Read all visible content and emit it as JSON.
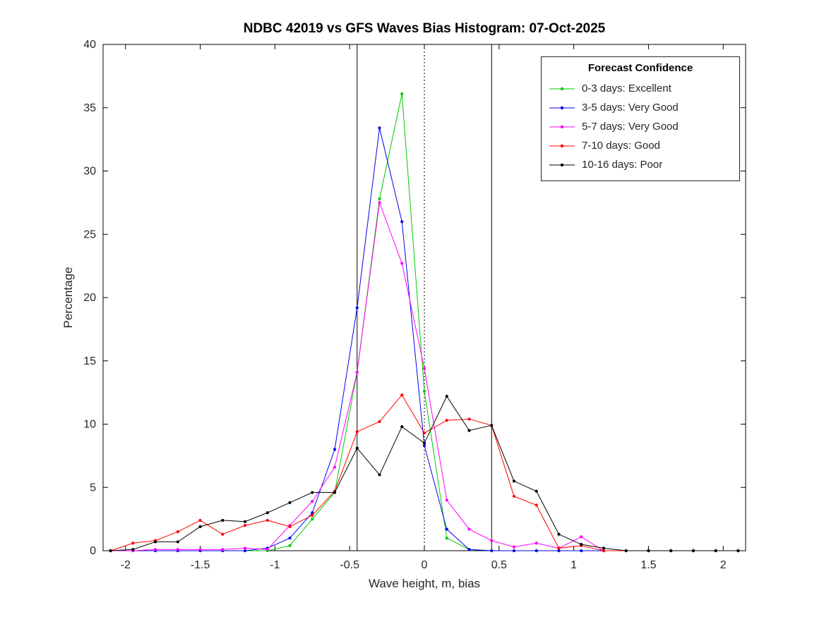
{
  "title": "NDBC 42019 vs GFS Waves Bias Histogram: 07-Oct-2025",
  "xlabel": "Wave height, m, bias",
  "ylabel": "Percentage",
  "legend": {
    "title": "Forecast Confidence"
  },
  "chart_data": {
    "type": "line",
    "title": "NDBC 42019 vs GFS Waves Bias Histogram: 07-Oct-2025",
    "xlabel": "Wave height, m, bias",
    "ylabel": "Percentage",
    "xlim": [
      -2.15,
      2.15
    ],
    "ylim": [
      0,
      40
    ],
    "xticks": [
      -2,
      -1.5,
      -1,
      -0.5,
      0,
      0.5,
      1,
      1.5,
      2
    ],
    "yticks": [
      0,
      5,
      10,
      15,
      20,
      25,
      30,
      35,
      40
    ],
    "grid": false,
    "legend_position": "top-right",
    "vlines": [
      {
        "x": -0.45,
        "style": "solid"
      },
      {
        "x": 0,
        "style": "dotted"
      },
      {
        "x": 0.45,
        "style": "solid"
      }
    ],
    "x": [
      -2.1,
      -1.95,
      -1.8,
      -1.65,
      -1.5,
      -1.35,
      -1.2,
      -1.05,
      -0.9,
      -0.75,
      -0.6,
      -0.45,
      -0.3,
      -0.15,
      0,
      0.15,
      0.3,
      0.45,
      0.6,
      0.75,
      0.9,
      1.05,
      1.2,
      1.35,
      1.5,
      1.65,
      1.8,
      1.95,
      2.1
    ],
    "series": [
      {
        "name": "0-3 days: Excellent",
        "color": "#00cc00",
        "values": [
          0,
          0,
          0,
          0,
          0,
          0,
          0,
          0,
          0.4,
          2.5,
          4.6,
          14.1,
          27.8,
          36.1,
          12.6,
          1.0,
          0.1,
          0,
          0,
          0,
          0,
          0,
          0,
          0,
          0,
          0,
          0,
          0,
          0
        ]
      },
      {
        "name": "3-5 days: Very Good",
        "color": "#0000ee",
        "values": [
          0,
          0,
          0,
          0,
          0,
          0,
          0,
          0.2,
          1.0,
          3.0,
          8.0,
          19.2,
          33.4,
          26.0,
          8.3,
          1.7,
          0.1,
          0,
          0,
          0,
          0,
          0,
          0,
          0,
          0,
          0,
          0,
          0,
          0
        ]
      },
      {
        "name": "5-7 days: Very Good",
        "color": "#ff00ff",
        "values": [
          0,
          0,
          0.1,
          0.1,
          0.1,
          0.1,
          0.2,
          0.1,
          2.0,
          3.9,
          6.6,
          14.1,
          27.5,
          22.7,
          14.4,
          4.0,
          1.7,
          0.8,
          0.3,
          0.6,
          0.2,
          1.1,
          0,
          0,
          0,
          0,
          0,
          0,
          0
        ]
      },
      {
        "name": "7-10 days: Good",
        "color": "#ff0000",
        "values": [
          0,
          0.6,
          0.8,
          1.5,
          2.4,
          1.3,
          2.0,
          2.4,
          1.9,
          2.8,
          4.7,
          9.4,
          10.2,
          12.3,
          9.3,
          10.3,
          10.4,
          9.9,
          4.3,
          3.6,
          0.2,
          0.4,
          0,
          0,
          0,
          0,
          0,
          0,
          0
        ]
      },
      {
        "name": "10-16 days: Poor",
        "color": "#000000",
        "values": [
          0,
          0.1,
          0.7,
          0.7,
          1.9,
          2.4,
          2.3,
          3.0,
          3.8,
          4.6,
          4.6,
          8.1,
          6.0,
          9.8,
          8.5,
          12.2,
          9.5,
          9.9,
          5.5,
          4.7,
          1.3,
          0.5,
          0.2,
          0,
          0,
          0,
          0,
          0,
          0
        ]
      }
    ]
  }
}
